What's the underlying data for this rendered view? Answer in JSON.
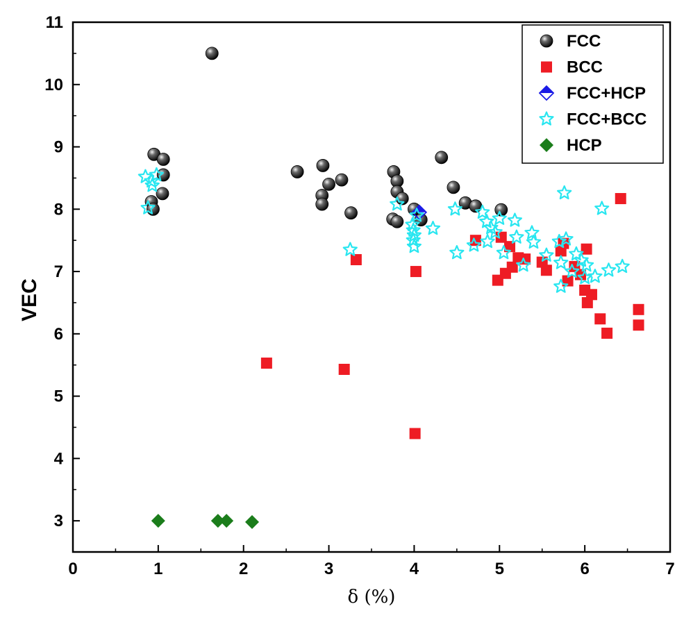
{
  "chart_data": {
    "type": "scatter",
    "xlabel": "δ (%)",
    "ylabel": "VEC",
    "xlim": [
      0,
      7
    ],
    "ylim": [
      2.5,
      11
    ],
    "xticks": [
      "0",
      "1",
      "2",
      "3",
      "4",
      "5",
      "6",
      "7"
    ],
    "yticks": [
      "3",
      "4",
      "5",
      "6",
      "7",
      "8",
      "9",
      "10",
      "11"
    ],
    "legend_position": "top-right",
    "series": [
      {
        "name": "FCC",
        "marker": "sphere",
        "color": "#111111",
        "points": [
          [
            1.63,
            10.5
          ],
          [
            0.95,
            8.88
          ],
          [
            1.06,
            8.8
          ],
          [
            1.06,
            8.55
          ],
          [
            1.05,
            8.25
          ],
          [
            0.92,
            8.12
          ],
          [
            0.94,
            8.0
          ],
          [
            2.63,
            8.6
          ],
          [
            2.93,
            8.7
          ],
          [
            3.0,
            8.4
          ],
          [
            3.15,
            8.47
          ],
          [
            2.92,
            8.22
          ],
          [
            2.92,
            8.08
          ],
          [
            3.26,
            7.94
          ],
          [
            3.76,
            8.6
          ],
          [
            3.8,
            8.45
          ],
          [
            3.8,
            8.28
          ],
          [
            3.86,
            8.17
          ],
          [
            3.75,
            7.84
          ],
          [
            3.8,
            7.8
          ],
          [
            4.0,
            8.0
          ],
          [
            4.08,
            7.83
          ],
          [
            4.32,
            8.83
          ],
          [
            4.46,
            8.35
          ],
          [
            4.6,
            8.1
          ],
          [
            4.72,
            8.05
          ],
          [
            5.02,
            7.99
          ]
        ]
      },
      {
        "name": "BCC",
        "marker": "square",
        "color": "#ee1c24",
        "points": [
          [
            2.27,
            5.53
          ],
          [
            3.18,
            5.43
          ],
          [
            3.32,
            7.19
          ],
          [
            4.02,
            7.0
          ],
          [
            4.01,
            4.4
          ],
          [
            4.72,
            7.5
          ],
          [
            4.98,
            6.86
          ],
          [
            5.02,
            7.55
          ],
          [
            5.07,
            6.97
          ],
          [
            5.12,
            7.4
          ],
          [
            5.15,
            7.07
          ],
          [
            5.22,
            7.22
          ],
          [
            5.3,
            7.2
          ],
          [
            5.5,
            7.15
          ],
          [
            5.55,
            7.02
          ],
          [
            5.72,
            7.33
          ],
          [
            5.75,
            7.45
          ],
          [
            5.8,
            6.85
          ],
          [
            5.88,
            7.08
          ],
          [
            5.95,
            6.95
          ],
          [
            6.0,
            6.7
          ],
          [
            6.02,
            7.36
          ],
          [
            6.03,
            6.5
          ],
          [
            6.08,
            6.63
          ],
          [
            6.18,
            6.24
          ],
          [
            6.26,
            6.01
          ],
          [
            6.42,
            8.17
          ],
          [
            6.63,
            6.39
          ],
          [
            6.63,
            6.14
          ]
        ]
      },
      {
        "name": "FCC+HCP",
        "marker": "diamond-half",
        "color": "#1a1ae6",
        "points": [
          [
            4.06,
            7.95
          ]
        ]
      },
      {
        "name": "FCC+BCC",
        "marker": "star",
        "color": "#29e6f0",
        "points": [
          [
            0.85,
            8.52
          ],
          [
            0.92,
            8.45
          ],
          [
            0.98,
            8.55
          ],
          [
            0.93,
            8.38
          ],
          [
            0.88,
            8.02
          ],
          [
            3.25,
            7.35
          ],
          [
            3.8,
            8.08
          ],
          [
            3.98,
            7.75
          ],
          [
            3.99,
            7.66
          ],
          [
            4.0,
            7.58
          ],
          [
            3.99,
            7.5
          ],
          [
            4.0,
            7.4
          ],
          [
            4.03,
            7.9
          ],
          [
            4.22,
            7.69
          ],
          [
            4.48,
            8.0
          ],
          [
            4.5,
            7.3
          ],
          [
            4.7,
            7.42
          ],
          [
            4.8,
            7.95
          ],
          [
            4.85,
            7.8
          ],
          [
            4.86,
            7.48
          ],
          [
            4.9,
            7.7
          ],
          [
            4.95,
            7.63
          ],
          [
            5.0,
            7.85
          ],
          [
            5.05,
            7.3
          ],
          [
            5.18,
            7.82
          ],
          [
            5.2,
            7.55
          ],
          [
            5.28,
            7.1
          ],
          [
            5.38,
            7.62
          ],
          [
            5.4,
            7.47
          ],
          [
            5.55,
            7.26
          ],
          [
            5.7,
            7.48
          ],
          [
            5.72,
            7.14
          ],
          [
            5.72,
            6.76
          ],
          [
            5.76,
            8.26
          ],
          [
            5.78,
            7.52
          ],
          [
            5.85,
            7.0
          ],
          [
            5.9,
            7.28
          ],
          [
            5.96,
            7.18
          ],
          [
            6.0,
            6.9
          ],
          [
            6.02,
            7.1
          ],
          [
            6.12,
            6.92
          ],
          [
            6.2,
            8.01
          ],
          [
            6.28,
            7.02
          ],
          [
            6.44,
            7.08
          ]
        ]
      },
      {
        "name": "HCP",
        "marker": "diamond",
        "color": "#1b7d1b",
        "points": [
          [
            1.0,
            3.0
          ],
          [
            1.7,
            3.0
          ],
          [
            1.8,
            3.0
          ],
          [
            2.1,
            2.98
          ]
        ]
      }
    ]
  }
}
